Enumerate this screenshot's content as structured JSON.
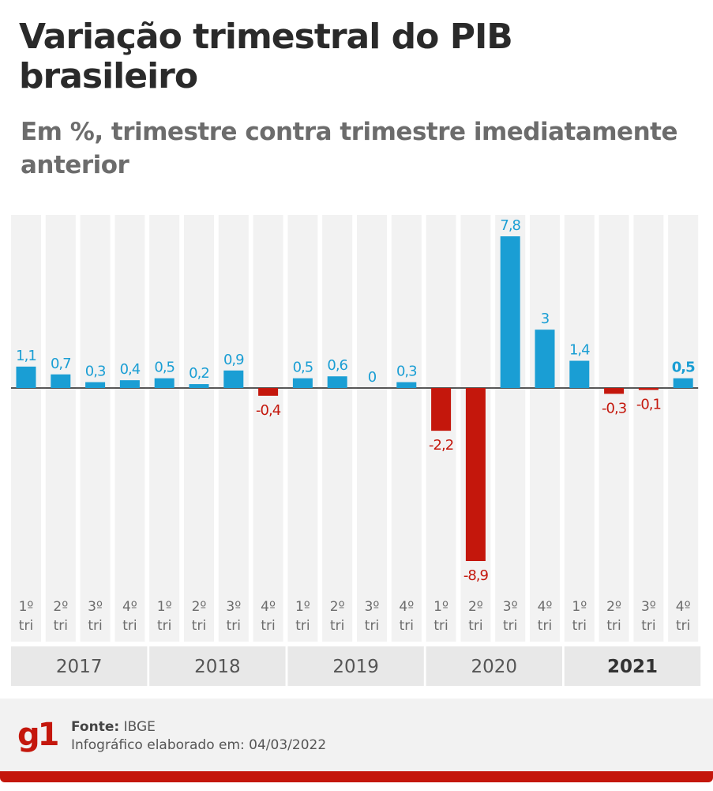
{
  "title": "Variação trimestral do PIB brasileiro",
  "subtitle": "Em %, trimestre contra trimestre imediatamente anterior",
  "colors": {
    "positive": "#1a9ed4",
    "negative": "#c4170c",
    "column_bg": "#f2f2f2",
    "year_bg": "#e8e8e8",
    "text": "#6c6c6c"
  },
  "chart_data": {
    "type": "bar",
    "categories": [
      "1º tri",
      "2º tri",
      "3º tri",
      "4º tri",
      "1º tri",
      "2º tri",
      "3º tri",
      "4º tri",
      "1º tri",
      "2º tri",
      "3º tri",
      "4º tri",
      "1º tri",
      "2º tri",
      "3º tri",
      "4º tri",
      "1º tri",
      "2º tri",
      "3º tri",
      "4º tri"
    ],
    "years": [
      "2017",
      "2018",
      "2019",
      "2020",
      "2021"
    ],
    "highlight_year": "2021",
    "values": [
      1.1,
      0.7,
      0.3,
      0.4,
      0.5,
      0.2,
      0.9,
      -0.4,
      0.5,
      0.6,
      0,
      0.3,
      -2.2,
      -8.9,
      7.8,
      3,
      1.4,
      -0.3,
      -0.1,
      0.5
    ],
    "value_labels": [
      "1,1",
      "0,7",
      "0,3",
      "0,4",
      "0,5",
      "0,2",
      "0,9",
      "-0,4",
      "0,5",
      "0,6",
      "0",
      "0,3",
      "-2,2",
      "-8,9",
      "7,8",
      "3",
      "1,4",
      "-0,3",
      "-0,1",
      "0,5"
    ],
    "quarter_label_line1": [
      "1º",
      "2º",
      "3º",
      "4º",
      "1º",
      "2º",
      "3º",
      "4º",
      "1º",
      "2º",
      "3º",
      "4º",
      "1º",
      "2º",
      "3º",
      "4º",
      "1º",
      "2º",
      "3º",
      "4º"
    ],
    "quarter_label_line2": "tri",
    "ylim": [
      -8.9,
      7.8
    ],
    "xlabel": "",
    "ylabel": ""
  },
  "footer": {
    "logo": "g1",
    "source_label": "Fonte:",
    "source_value": "IBGE",
    "made_text": "Infográfico elaborado em: 04/03/2022"
  }
}
